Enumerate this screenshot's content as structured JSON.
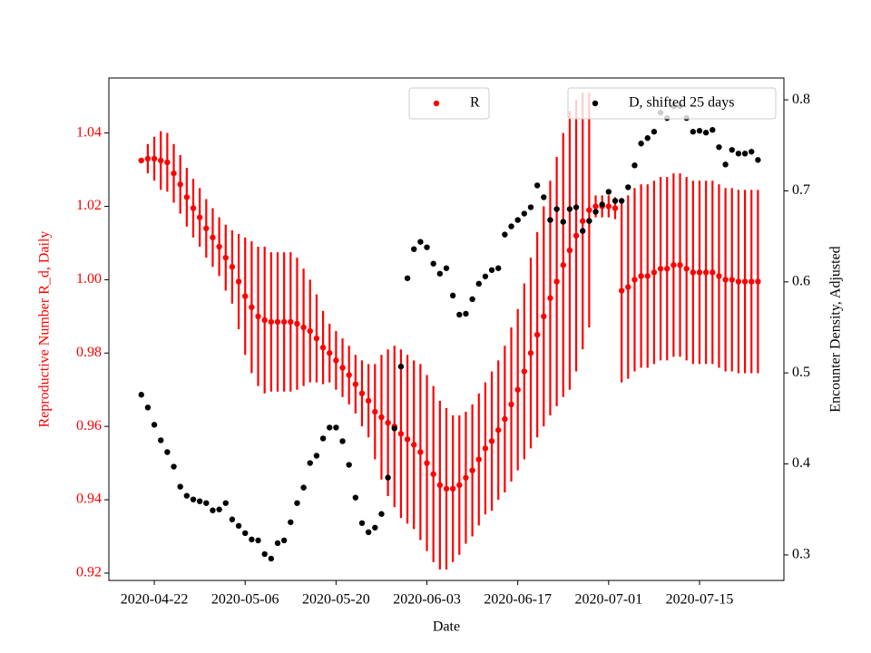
{
  "chart_data": {
    "type": "errorbar",
    "xlabel": "Date",
    "ylabel": "Reproductive Number R_d, Daily",
    "y2label": "Encounter Density, Adjusted",
    "ylabel_color": "red",
    "x": [
      "2020-04-20",
      "2020-04-21",
      "2020-04-22",
      "2020-04-23",
      "2020-04-24",
      "2020-04-25",
      "2020-04-26",
      "2020-04-27",
      "2020-04-28",
      "2020-04-29",
      "2020-04-30",
      "2020-05-01",
      "2020-05-02",
      "2020-05-03",
      "2020-05-04",
      "2020-05-05",
      "2020-05-06",
      "2020-05-07",
      "2020-05-08",
      "2020-05-09",
      "2020-05-10",
      "2020-05-11",
      "2020-05-12",
      "2020-05-13",
      "2020-05-14",
      "2020-05-15",
      "2020-05-16",
      "2020-05-17",
      "2020-05-18",
      "2020-05-19",
      "2020-05-20",
      "2020-05-21",
      "2020-05-22",
      "2020-05-23",
      "2020-05-24",
      "2020-05-25",
      "2020-05-26",
      "2020-05-27",
      "2020-05-28",
      "2020-05-29",
      "2020-05-30",
      "2020-05-31",
      "2020-06-01",
      "2020-06-02",
      "2020-06-03",
      "2020-06-04",
      "2020-06-05",
      "2020-06-06",
      "2020-06-07",
      "2020-06-08",
      "2020-06-09",
      "2020-06-10",
      "2020-06-11",
      "2020-06-12",
      "2020-06-13",
      "2020-06-14",
      "2020-06-15",
      "2020-06-16",
      "2020-06-17",
      "2020-06-18",
      "2020-06-19",
      "2020-06-20",
      "2020-06-21",
      "2020-06-22",
      "2020-06-23",
      "2020-06-24",
      "2020-06-25",
      "2020-06-26",
      "2020-06-27",
      "2020-06-28",
      "2020-06-29",
      "2020-06-30",
      "2020-07-01",
      "2020-07-02",
      "2020-07-03",
      "2020-07-04",
      "2020-07-05",
      "2020-07-06",
      "2020-07-07",
      "2020-07-08",
      "2020-07-09",
      "2020-07-10",
      "2020-07-11",
      "2020-07-12",
      "2020-07-13",
      "2020-07-14",
      "2020-07-15",
      "2020-07-16",
      "2020-07-17",
      "2020-07-18",
      "2020-07-19",
      "2020-07-20",
      "2020-07-21",
      "2020-07-22",
      "2020-07-23",
      "2020-07-24"
    ],
    "xlim": [
      "2020-04-15",
      "2020-07-28"
    ],
    "xticks": [
      "2020-04-22",
      "2020-05-06",
      "2020-05-20",
      "2020-06-03",
      "2020-06-17",
      "2020-07-01",
      "2020-07-15"
    ],
    "ylim": [
      0.918,
      1.055
    ],
    "yticks": [
      0.92,
      0.94,
      0.96,
      0.98,
      {
        "value": 1,
        "label": "1.00"
      },
      1.02,
      1.04
    ],
    "y2lim": [
      0.272,
      0.824
    ],
    "y2ticks": [
      0.3,
      0.4,
      0.5,
      0.6,
      0.7,
      0.8
    ],
    "series": [
      {
        "name": "R",
        "color": "red",
        "axis": "y",
        "legend_loc": "upper center",
        "values": [
          1.0325,
          1.033,
          1.033,
          1.0325,
          1.032,
          1.029,
          1.026,
          1.0225,
          1.0195,
          1.017,
          1.014,
          1.0115,
          1.009,
          1.006,
          1.0035,
          0.9995,
          0.9955,
          0.9925,
          0.99,
          0.989,
          0.9885,
          0.9885,
          0.9885,
          0.9885,
          0.988,
          0.987,
          0.986,
          0.984,
          0.9815,
          0.98,
          0.978,
          0.976,
          0.974,
          0.9715,
          0.969,
          0.967,
          0.964,
          0.9625,
          0.961,
          0.96,
          0.958,
          0.9565,
          0.955,
          0.953,
          0.95,
          0.947,
          0.944,
          0.943,
          0.943,
          0.944,
          0.946,
          0.948,
          0.951,
          0.954,
          0.956,
          0.959,
          0.962,
          0.966,
          0.97,
          0.975,
          0.98,
          0.985,
          0.99,
          0.995,
          0.9995,
          1.004,
          1.008,
          1.012,
          1.016,
          1.019,
          1.02,
          1.02,
          1.02,
          1.0195,
          0.997,
          0.998,
          1.0,
          1.001,
          1.001,
          1.002,
          1.003,
          1.003,
          1.004,
          1.004,
          1.003,
          1.002,
          1.002,
          1.002,
          1.002,
          1.001,
          1.0,
          1.0,
          0.9995,
          0.9995,
          0.9995,
          0.9995
        ],
        "errors": [
          0,
          0.004,
          0.006,
          0.008,
          0.008,
          0.008,
          0.008,
          0.008,
          0.008,
          0.008,
          0.008,
          0.008,
          0.008,
          0.009,
          0.01,
          0.013,
          0.016,
          0.018,
          0.019,
          0.02,
          0.019,
          0.019,
          0.019,
          0.019,
          0.018,
          0.016,
          0.014,
          0.012,
          0.01,
          0.008,
          0.008,
          0.008,
          0.008,
          0.008,
          0.009,
          0.01,
          0.013,
          0.017,
          0.02,
          0.022,
          0.023,
          0.023,
          0.023,
          0.024,
          0.024,
          0.024,
          0.023,
          0.022,
          0.02,
          0.019,
          0.018,
          0.018,
          0.018,
          0.018,
          0.019,
          0.019,
          0.02,
          0.021,
          0.022,
          0.024,
          0.026,
          0.028,
          0.03,
          0.032,
          0.034,
          0.036,
          0.038,
          0.037,
          0.035,
          0.032,
          0.003,
          0.003,
          0.003,
          0.003,
          0.025,
          0.025,
          0.025,
          0.025,
          0.025,
          0.025,
          0.025,
          0.025,
          0.025,
          0.025,
          0.025,
          0.025,
          0.025,
          0.025,
          0.025,
          0.025,
          0.025,
          0.025,
          0.025,
          0.025,
          0.025,
          0.025
        ]
      },
      {
        "name": "D, shifted 25 days",
        "color": "black",
        "axis": "y2",
        "legend_loc": "upper right",
        "values": [
          0.476,
          0.462,
          0.443,
          0.426,
          0.413,
          0.397,
          0.375,
          0.365,
          0.361,
          0.359,
          0.357,
          0.349,
          0.35,
          0.357,
          0.339,
          0.332,
          0.324,
          0.317,
          0.316,
          0.301,
          0.296,
          0.313,
          0.316,
          0.336,
          0.357,
          0.374,
          0.401,
          0.409,
          0.428,
          0.44,
          0.44,
          0.425,
          0.399,
          0.363,
          0.335,
          0.325,
          0.33,
          0.345,
          0.385,
          0.439,
          0.507,
          0.604,
          0.636,
          0.644,
          0.638,
          0.62,
          0.609,
          0.615,
          0.585,
          0.564,
          0.565,
          0.581,
          0.598,
          0.606,
          0.613,
          0.615,
          0.652,
          0.661,
          0.668,
          0.675,
          0.682,
          0.706,
          0.693,
          0.668,
          0.68,
          0.666,
          0.68,
          0.682,
          0.656,
          0.667,
          0.677,
          0.685,
          0.699,
          0.689,
          0.689,
          0.704,
          0.728,
          0.752,
          0.758,
          0.765,
          0.786,
          0.78,
          0.793,
          0.793,
          0.78,
          0.765,
          0.766,
          0.764,
          0.767,
          0.748,
          0.729,
          0.745,
          0.741,
          0.741,
          0.743,
          0.734
        ]
      }
    ]
  }
}
